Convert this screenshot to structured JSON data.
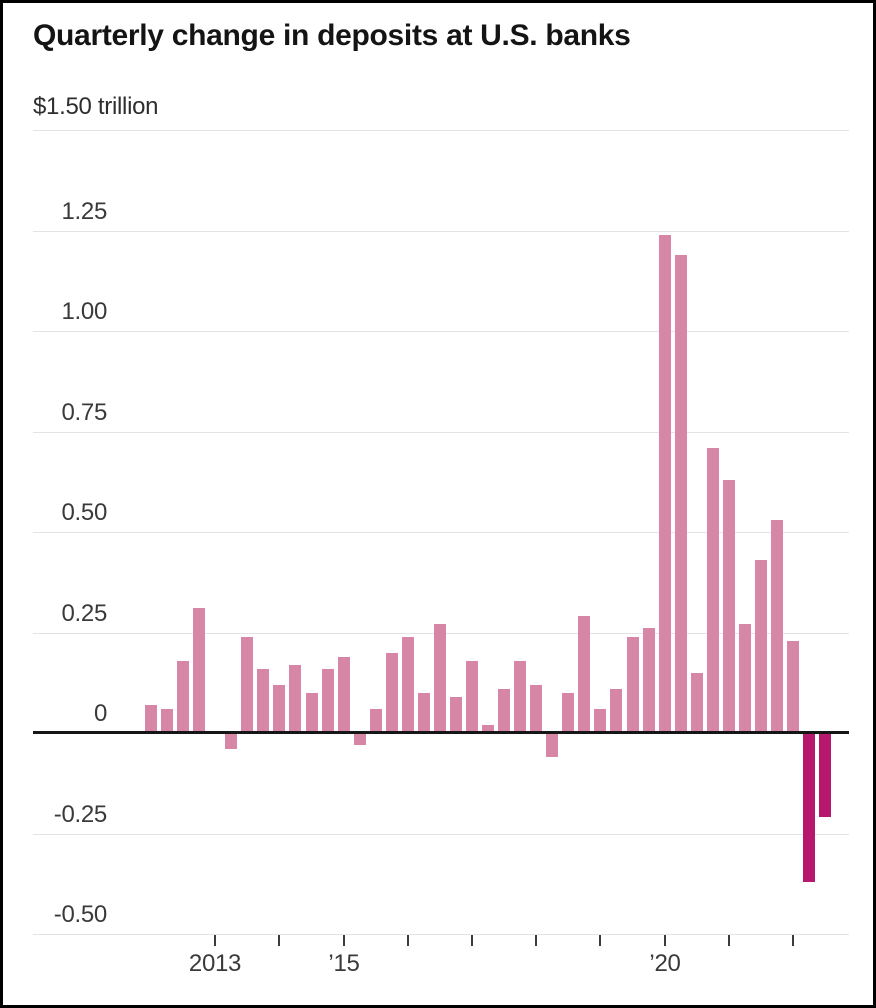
{
  "chart_data": {
    "type": "bar",
    "title": "Quarterly change in deposits at U.S. banks",
    "unit_label": "$1.50 trillion",
    "xlabel": "",
    "ylabel": "trillion USD",
    "ylim": [
      -0.5,
      1.5
    ],
    "grid": "horizontal",
    "legend": "none",
    "y_axis": {
      "top_label": "$1.50 trillion",
      "tick_values": [
        1.25,
        1.0,
        0.75,
        0.5,
        0.25,
        0,
        -0.25,
        -0.5
      ],
      "tick_labels": [
        "1.25",
        "1.00",
        "0.75",
        "0.50",
        "0.25",
        "0",
        "-0.25",
        "-0.50"
      ]
    },
    "x_axis": {
      "tick_years": [
        2013,
        2014,
        2015,
        2016,
        2017,
        2018,
        2019,
        2020,
        2021,
        2022
      ],
      "year_labels": {
        "2013": "2013",
        "2015": "’15",
        "2020": "’20"
      }
    },
    "categories": [
      "2012 Q1",
      "2012 Q2",
      "2012 Q3",
      "2012 Q4",
      "2013 Q1",
      "2013 Q2",
      "2013 Q3",
      "2013 Q4",
      "2014 Q1",
      "2014 Q2",
      "2014 Q3",
      "2014 Q4",
      "2015 Q1",
      "2015 Q2",
      "2015 Q3",
      "2015 Q4",
      "2016 Q1",
      "2016 Q2",
      "2016 Q3",
      "2016 Q4",
      "2017 Q1",
      "2017 Q2",
      "2017 Q3",
      "2017 Q4",
      "2018 Q1",
      "2018 Q2",
      "2018 Q3",
      "2018 Q4",
      "2019 Q1",
      "2019 Q2",
      "2019 Q3",
      "2019 Q4",
      "2020 Q1",
      "2020 Q2",
      "2020 Q3",
      "2020 Q4",
      "2021 Q1",
      "2021 Q2",
      "2021 Q3",
      "2021 Q4",
      "2022 Q1",
      "2022 Q2",
      "2022 Q3"
    ],
    "values": [
      0.07,
      0.06,
      0.18,
      0.31,
      0.0,
      -0.04,
      0.24,
      0.16,
      0.12,
      0.17,
      0.1,
      0.16,
      0.19,
      -0.03,
      0.06,
      0.2,
      0.24,
      0.1,
      0.27,
      0.09,
      0.18,
      0.02,
      0.11,
      0.18,
      0.12,
      -0.06,
      0.1,
      0.29,
      0.06,
      0.11,
      0.24,
      0.26,
      1.24,
      1.19,
      0.15,
      0.71,
      0.63,
      0.27,
      0.43,
      0.53,
      0.23,
      -0.37,
      -0.21
    ],
    "bar_color": "#d687a6",
    "highlight_color": "#b5186d",
    "highlight_last": 2,
    "gridline_color": "#e3e3e3",
    "zero_line_color": "#161616"
  }
}
